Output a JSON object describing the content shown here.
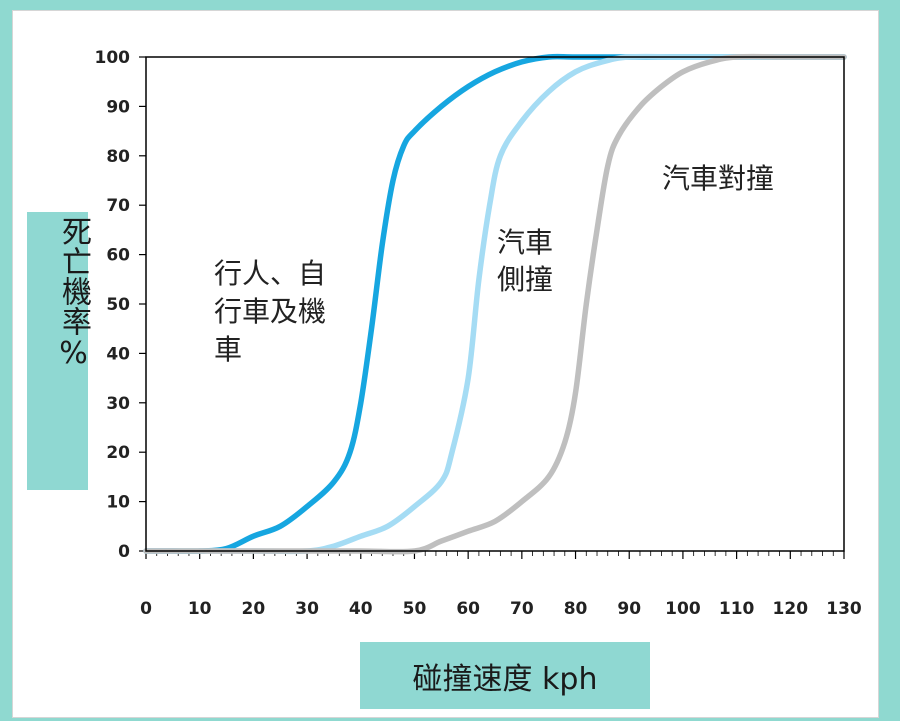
{
  "chart_data": {
    "type": "line",
    "title": "",
    "xlabel": "碰撞速度 kph",
    "ylabel": "死亡機率%",
    "xlim": [
      0,
      130
    ],
    "ylim": [
      0,
      100
    ],
    "x_ticks": [
      0,
      10,
      20,
      30,
      40,
      50,
      60,
      70,
      80,
      90,
      100,
      110,
      120,
      130
    ],
    "y_ticks": [
      0,
      10,
      20,
      30,
      40,
      50,
      60,
      70,
      80,
      90,
      100
    ],
    "grid": false,
    "series": [
      {
        "name": "行人、自行車及機車",
        "color": "#16a6e0",
        "points": [
          [
            0,
            0
          ],
          [
            5,
            0
          ],
          [
            10,
            0
          ],
          [
            15,
            0.5
          ],
          [
            20,
            3
          ],
          [
            25,
            5
          ],
          [
            30,
            9
          ],
          [
            35,
            14
          ],
          [
            38,
            20
          ],
          [
            40,
            30
          ],
          [
            42,
            45
          ],
          [
            44,
            62
          ],
          [
            46,
            75
          ],
          [
            48,
            82
          ],
          [
            50,
            85
          ],
          [
            55,
            90
          ],
          [
            60,
            94
          ],
          [
            65,
            97
          ],
          [
            70,
            99
          ],
          [
            75,
            100
          ],
          [
            80,
            100
          ],
          [
            90,
            100
          ],
          [
            100,
            100
          ],
          [
            110,
            100
          ],
          [
            120,
            100
          ],
          [
            130,
            100
          ]
        ]
      },
      {
        "name": "汽車側撞",
        "color": "#a5dcf4",
        "points": [
          [
            0,
            0
          ],
          [
            10,
            0
          ],
          [
            20,
            0
          ],
          [
            30,
            0
          ],
          [
            35,
            1
          ],
          [
            40,
            3
          ],
          [
            45,
            5
          ],
          [
            50,
            9
          ],
          [
            55,
            14
          ],
          [
            57,
            20
          ],
          [
            60,
            35
          ],
          [
            62,
            55
          ],
          [
            64,
            70
          ],
          [
            66,
            80
          ],
          [
            70,
            87
          ],
          [
            75,
            93
          ],
          [
            80,
            97
          ],
          [
            85,
            99
          ],
          [
            90,
            100
          ],
          [
            100,
            100
          ],
          [
            110,
            100
          ],
          [
            120,
            100
          ],
          [
            130,
            100
          ]
        ]
      },
      {
        "name": "汽車對撞",
        "color": "#bfbfbf",
        "points": [
          [
            0,
            0
          ],
          [
            10,
            0
          ],
          [
            20,
            0
          ],
          [
            30,
            0
          ],
          [
            40,
            0
          ],
          [
            50,
            0
          ],
          [
            55,
            2
          ],
          [
            60,
            4
          ],
          [
            65,
            6
          ],
          [
            70,
            10
          ],
          [
            75,
            15
          ],
          [
            78,
            22
          ],
          [
            80,
            32
          ],
          [
            82,
            50
          ],
          [
            84,
            65
          ],
          [
            86,
            78
          ],
          [
            88,
            84
          ],
          [
            92,
            90
          ],
          [
            96,
            94
          ],
          [
            100,
            97
          ],
          [
            105,
            99
          ],
          [
            110,
            100
          ],
          [
            120,
            100
          ],
          [
            130,
            100
          ]
        ]
      }
    ],
    "annotations": [
      {
        "lines": [
          "行人、自行車及機車"
        ]
      },
      {
        "lines": [
          "汽車側撞"
        ]
      },
      {
        "lines": [
          "汽車對撞"
        ]
      }
    ]
  },
  "annotation_lines": {
    "a0": [
      "行人、自",
      "行車及機",
      "車"
    ],
    "a1": [
      "汽車",
      "側撞"
    ],
    "a2": [
      "汽車對撞"
    ]
  }
}
